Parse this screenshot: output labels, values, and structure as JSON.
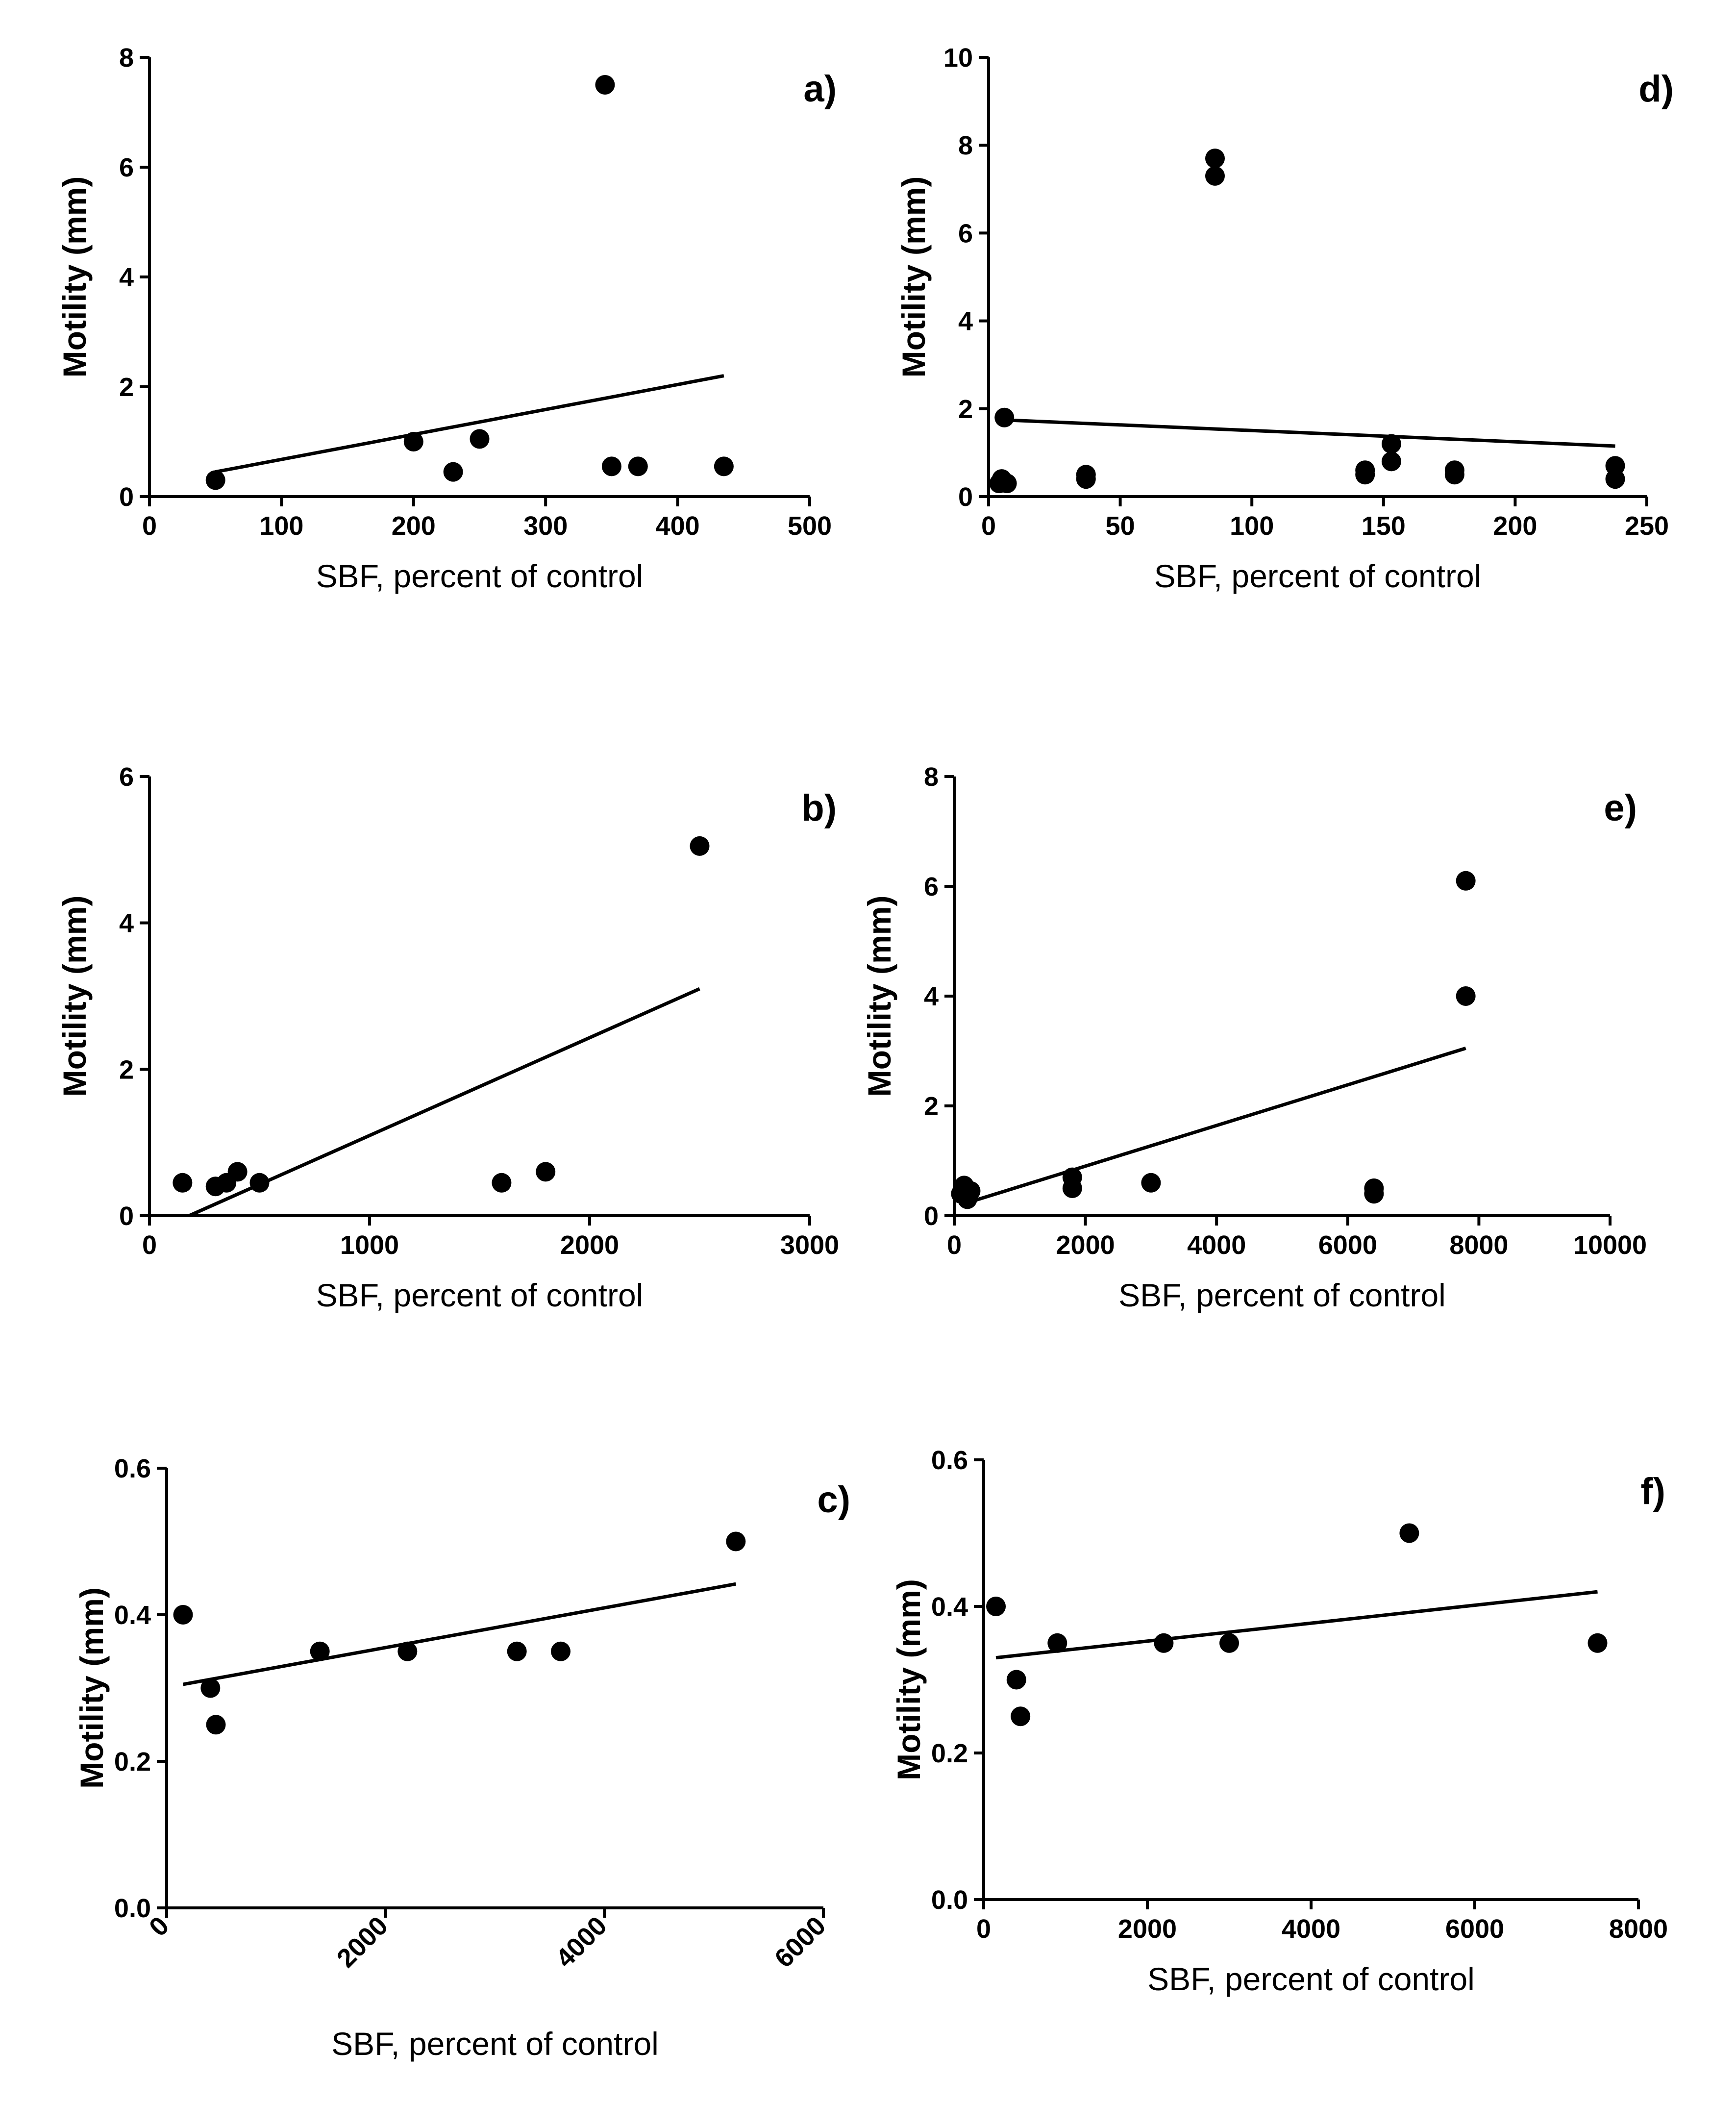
{
  "chart_data": [
    {
      "id": "a",
      "type": "scatter",
      "panel_label": "a)",
      "xlabel": "SBF, percent of control",
      "ylabel": "Motility (mm)",
      "xlim": [
        0,
        500
      ],
      "ylim": [
        0,
        8
      ],
      "xticks": [
        0,
        100,
        200,
        300,
        400,
        500
      ],
      "yticks": [
        0,
        2,
        4,
        6,
        8
      ],
      "xtick_labels": [
        "0",
        "100",
        "200",
        "300",
        "400",
        "500"
      ],
      "ytick_labels": [
        "0",
        "2",
        "4",
        "6",
        "8"
      ],
      "points": [
        [
          50,
          0.3
        ],
        [
          200,
          1.0
        ],
        [
          230,
          0.45
        ],
        [
          250,
          1.05
        ],
        [
          345,
          7.5
        ],
        [
          350,
          0.55
        ],
        [
          370,
          0.55
        ],
        [
          435,
          0.55
        ]
      ],
      "fit_line": [
        [
          50,
          0.45
        ],
        [
          435,
          2.2
        ]
      ]
    },
    {
      "id": "b",
      "type": "scatter",
      "panel_label": "b)",
      "xlabel": "SBF, percent of control",
      "ylabel": "Motility (mm)",
      "xlim": [
        0,
        3000
      ],
      "ylim": [
        0,
        6
      ],
      "xticks": [
        0,
        1000,
        2000,
        3000
      ],
      "yticks": [
        0,
        2,
        4,
        6
      ],
      "xtick_labels": [
        "0",
        "1000",
        "2000",
        "3000"
      ],
      "ytick_labels": [
        "0",
        "2",
        "4",
        "6"
      ],
      "points": [
        [
          150,
          0.45
        ],
        [
          300,
          0.4
        ],
        [
          350,
          0.45
        ],
        [
          400,
          0.6
        ],
        [
          500,
          0.45
        ],
        [
          1600,
          0.45
        ],
        [
          1800,
          0.6
        ],
        [
          2500,
          5.05
        ]
      ],
      "fit_line": [
        [
          180,
          0.0
        ],
        [
          2500,
          3.1
        ]
      ]
    },
    {
      "id": "c",
      "type": "scatter",
      "panel_label": "c)",
      "xlabel": "SBF, percent of control",
      "ylabel": "Motility (mm)",
      "xlim": [
        0,
        6000
      ],
      "ylim": [
        0,
        0.6
      ],
      "xticks": [
        0,
        2000,
        4000,
        6000
      ],
      "yticks": [
        0,
        0.2,
        0.4,
        0.6
      ],
      "xtick_labels": [
        "0",
        "2000",
        "4000",
        "6000"
      ],
      "ytick_labels": [
        "0.0",
        "0.2",
        "0.4",
        "0.6"
      ],
      "x_tick_rotation": -45,
      "points": [
        [
          150,
          0.4
        ],
        [
          400,
          0.3
        ],
        [
          450,
          0.25
        ],
        [
          1400,
          0.35
        ],
        [
          2200,
          0.35
        ],
        [
          3200,
          0.35
        ],
        [
          3600,
          0.35
        ],
        [
          5200,
          0.5
        ]
      ],
      "fit_line": [
        [
          150,
          0.305
        ],
        [
          5200,
          0.442
        ]
      ]
    },
    {
      "id": "d",
      "type": "scatter",
      "panel_label": "d)",
      "xlabel": "SBF, percent of control",
      "ylabel": "Motility (mm)",
      "xlim": [
        0,
        250
      ],
      "ylim": [
        0,
        10
      ],
      "xticks": [
        0,
        50,
        100,
        150,
        200,
        250
      ],
      "yticks": [
        0,
        2,
        4,
        6,
        8,
        10
      ],
      "xtick_labels": [
        "0",
        "50",
        "100",
        "150",
        "200",
        "250"
      ],
      "ytick_labels": [
        "0",
        "2",
        "4",
        "6",
        "8",
        "10"
      ],
      "points": [
        [
          4,
          0.3
        ],
        [
          5,
          0.4
        ],
        [
          6,
          1.8
        ],
        [
          7,
          0.3
        ],
        [
          37,
          0.4
        ],
        [
          37,
          0.5
        ],
        [
          86,
          7.3
        ],
        [
          86,
          7.7
        ],
        [
          143,
          0.5
        ],
        [
          143,
          0.6
        ],
        [
          153,
          0.8
        ],
        [
          153,
          1.2
        ],
        [
          177,
          0.5
        ],
        [
          177,
          0.6
        ],
        [
          238,
          0.4
        ],
        [
          238,
          0.7
        ]
      ],
      "fit_line": [
        [
          4,
          1.75
        ],
        [
          238,
          1.15
        ]
      ]
    },
    {
      "id": "e",
      "type": "scatter",
      "panel_label": "e)",
      "xlabel": "SBF, percent of control",
      "ylabel": "Motility (mm)",
      "xlim": [
        0,
        10000
      ],
      "ylim": [
        0,
        8
      ],
      "xticks": [
        0,
        2000,
        4000,
        6000,
        8000,
        10000
      ],
      "yticks": [
        0,
        2,
        4,
        6,
        8
      ],
      "xtick_labels": [
        "0",
        "2000",
        "4000",
        "6000",
        "8000",
        "10000"
      ],
      "ytick_labels": [
        "0",
        "2",
        "4",
        "6",
        "8"
      ],
      "points": [
        [
          100,
          0.4
        ],
        [
          150,
          0.55
        ],
        [
          200,
          0.3
        ],
        [
          250,
          0.45
        ],
        [
          1800,
          0.5
        ],
        [
          1800,
          0.7
        ],
        [
          3000,
          0.6
        ],
        [
          6400,
          0.4
        ],
        [
          6400,
          0.5
        ],
        [
          7800,
          4.0
        ],
        [
          7800,
          6.1
        ]
      ],
      "fit_line": [
        [
          100,
          0.2
        ],
        [
          7800,
          3.05
        ]
      ]
    },
    {
      "id": "f",
      "type": "scatter",
      "panel_label": "f)",
      "xlabel": "SBF, percent of control",
      "ylabel": "Motility (mm)",
      "xlim": [
        0,
        8000
      ],
      "ylim": [
        0,
        0.6
      ],
      "xticks": [
        0,
        2000,
        4000,
        6000,
        8000
      ],
      "yticks": [
        0,
        0.2,
        0.4,
        0.6
      ],
      "xtick_labels": [
        "0",
        "2000",
        "4000",
        "6000",
        "8000"
      ],
      "ytick_labels": [
        "0.0",
        "0.2",
        "0.4",
        "0.6"
      ],
      "points": [
        [
          150,
          0.4
        ],
        [
          400,
          0.3
        ],
        [
          450,
          0.25
        ],
        [
          900,
          0.35
        ],
        [
          2200,
          0.35
        ],
        [
          3000,
          0.35
        ],
        [
          5200,
          0.5
        ],
        [
          7500,
          0.35
        ]
      ],
      "fit_line": [
        [
          150,
          0.33
        ],
        [
          7500,
          0.42
        ]
      ]
    }
  ]
}
